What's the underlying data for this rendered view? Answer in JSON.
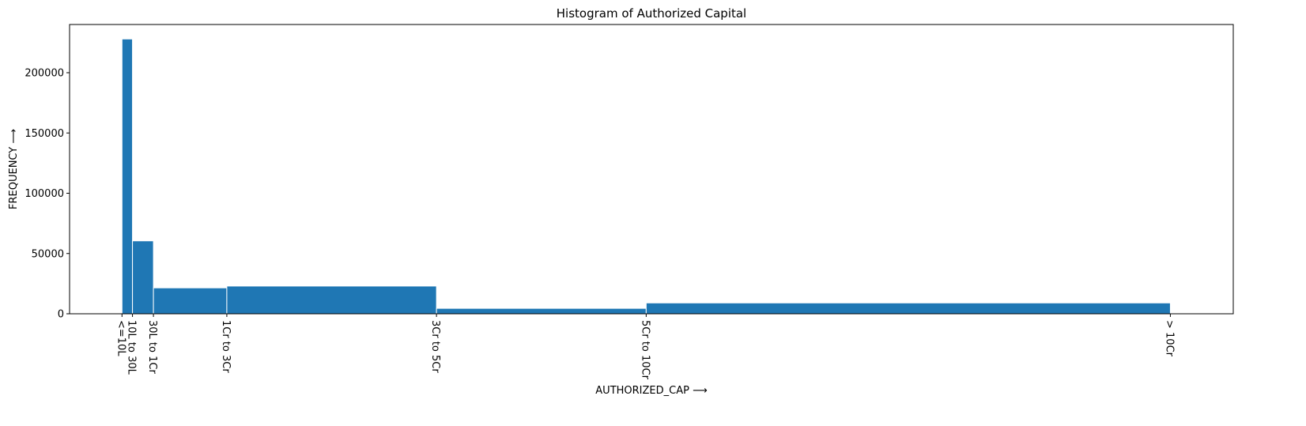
{
  "chart_data": {
    "type": "bar",
    "title": "Histogram of Authorized Capital",
    "xlabel": "AUTHORIZED_CAP  ⟶",
    "ylabel": "FREQUENCY  ⟶",
    "ylim": [
      0,
      240000
    ],
    "yticks": [
      0,
      50000,
      100000,
      150000,
      200000
    ],
    "grid": false,
    "bins": [
      {
        "start": 0,
        "end": 10,
        "value": 228000
      },
      {
        "start": 10,
        "end": 30,
        "value": 60500
      },
      {
        "start": 30,
        "end": 100,
        "value": 21500
      },
      {
        "start": 100,
        "end": 300,
        "value": 23000
      },
      {
        "start": 300,
        "end": 500,
        "value": 4500
      },
      {
        "start": 500,
        "end": 1000,
        "value": 9000
      }
    ],
    "xticks": [
      {
        "pos": 0,
        "label": "<=10L"
      },
      {
        "pos": 10,
        "label": "10L to 30L"
      },
      {
        "pos": 30,
        "label": "30L to 1Cr"
      },
      {
        "pos": 100,
        "label": "1Cr to 3Cr"
      },
      {
        "pos": 300,
        "label": "3Cr to 5Cr"
      },
      {
        "pos": 500,
        "label": "5Cr to 10Cr"
      },
      {
        "pos": 1000,
        "label": "> 10Cr"
      }
    ],
    "xlim": [
      -50,
      1060
    ]
  }
}
